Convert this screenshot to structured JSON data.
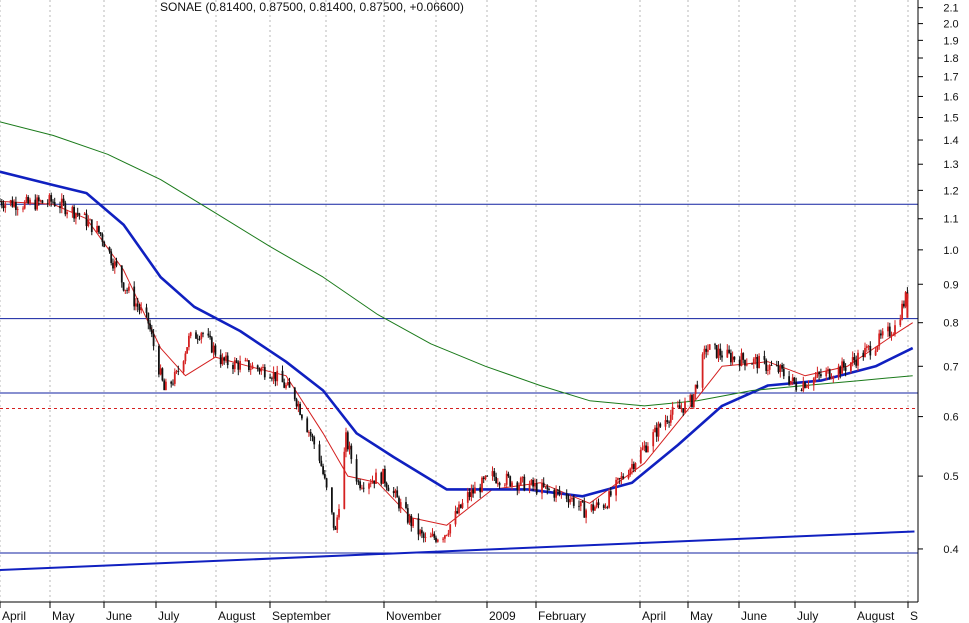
{
  "chart_data": {
    "type": "line",
    "title": "SONAE (0.81400, 0.87500, 0.81400, 0.87500, +0.06600)",
    "y_scale": "log",
    "ylim": [
      0.34,
      2.15
    ],
    "y_ticks": [
      2.1,
      2.0,
      1.9,
      1.8,
      1.7,
      1.6,
      1.5,
      1.4,
      1.3,
      1.2,
      1.1,
      1.0,
      0.9,
      0.8,
      0.7,
      0.6,
      0.5,
      0.4
    ],
    "x_labels": [
      "April",
      "May",
      "June",
      "July",
      "August",
      "September",
      "November",
      "2009",
      "February",
      "April",
      "May",
      "June",
      "July",
      "August",
      "S"
    ],
    "grid": "vertical dotted",
    "series": [
      {
        "type": "candlestick",
        "points": [
          {
            "date": "2008-04-01",
            "value": 1.16
          },
          {
            "date": "2008-04-15",
            "value": 1.15
          },
          {
            "date": "2008-05-01",
            "value": 1.16
          },
          {
            "date": "2008-05-15",
            "value": 1.12
          },
          {
            "date": "2008-05-28",
            "value": 1.05
          },
          {
            "date": "2008-06-10",
            "value": 0.9
          },
          {
            "date": "2008-06-24",
            "value": 0.8
          },
          {
            "date": "2008-07-03",
            "value": 0.65
          },
          {
            "date": "2008-07-10",
            "value": 0.68
          },
          {
            "date": "2008-07-17",
            "value": 0.76
          },
          {
            "date": "2008-07-24",
            "value": 0.78
          },
          {
            "date": "2008-08-05",
            "value": 0.71
          },
          {
            "date": "2008-08-20",
            "value": 0.7
          },
          {
            "date": "2008-09-01",
            "value": 0.69
          },
          {
            "date": "2008-09-15",
            "value": 0.64
          },
          {
            "date": "2008-09-29",
            "value": 0.53
          },
          {
            "date": "2008-10-08",
            "value": 0.42
          },
          {
            "date": "2008-10-14",
            "value": 0.56
          },
          {
            "date": "2008-10-21",
            "value": 0.49
          },
          {
            "date": "2008-11-04",
            "value": 0.5
          },
          {
            "date": "2008-11-18",
            "value": 0.44
          },
          {
            "date": "2008-11-28",
            "value": 0.41
          },
          {
            "date": "2008-12-09",
            "value": 0.42
          },
          {
            "date": "2008-12-22",
            "value": 0.47
          },
          {
            "date": "2009-01-05",
            "value": 0.5
          },
          {
            "date": "2009-01-20",
            "value": 0.49
          },
          {
            "date": "2009-02-03",
            "value": 0.48
          },
          {
            "date": "2009-02-17",
            "value": 0.47
          },
          {
            "date": "2009-02-26",
            "value": 0.45
          },
          {
            "date": "2009-03-10",
            "value": 0.46
          },
          {
            "date": "2009-03-20",
            "value": 0.5
          },
          {
            "date": "2009-04-02",
            "value": 0.55
          },
          {
            "date": "2009-04-14",
            "value": 0.6
          },
          {
            "date": "2009-04-28",
            "value": 0.63
          },
          {
            "date": "2009-05-06",
            "value": 0.74
          },
          {
            "date": "2009-05-20",
            "value": 0.72
          },
          {
            "date": "2009-06-03",
            "value": 0.71
          },
          {
            "date": "2009-06-17",
            "value": 0.69
          },
          {
            "date": "2009-06-26",
            "value": 0.66
          },
          {
            "date": "2009-07-10",
            "value": 0.68
          },
          {
            "date": "2009-07-24",
            "value": 0.7
          },
          {
            "date": "2009-08-07",
            "value": 0.74
          },
          {
            "date": "2009-08-21",
            "value": 0.79
          },
          {
            "date": "2009-08-28",
            "value": 0.875
          }
        ]
      },
      {
        "type": "line",
        "color": "#d42020",
        "points": [
          {
            "date": "2008-04-01",
            "value": 1.16
          },
          {
            "date": "2008-05-01",
            "value": 1.15
          },
          {
            "date": "2008-05-20",
            "value": 1.1
          },
          {
            "date": "2008-06-10",
            "value": 0.94
          },
          {
            "date": "2008-07-01",
            "value": 0.74
          },
          {
            "date": "2008-07-15",
            "value": 0.68
          },
          {
            "date": "2008-08-01",
            "value": 0.72
          },
          {
            "date": "2008-08-20",
            "value": 0.7
          },
          {
            "date": "2008-09-10",
            "value": 0.68
          },
          {
            "date": "2008-10-01",
            "value": 0.57
          },
          {
            "date": "2008-10-15",
            "value": 0.5
          },
          {
            "date": "2008-11-01",
            "value": 0.49
          },
          {
            "date": "2008-11-20",
            "value": 0.44
          },
          {
            "date": "2008-12-10",
            "value": 0.43
          },
          {
            "date": "2009-01-05",
            "value": 0.48
          },
          {
            "date": "2009-02-01",
            "value": 0.49
          },
          {
            "date": "2009-03-01",
            "value": 0.46
          },
          {
            "date": "2009-04-01",
            "value": 0.52
          },
          {
            "date": "2009-04-25",
            "value": 0.61
          },
          {
            "date": "2009-05-15",
            "value": 0.7
          },
          {
            "date": "2009-06-10",
            "value": 0.71
          },
          {
            "date": "2009-07-01",
            "value": 0.68
          },
          {
            "date": "2009-07-25",
            "value": 0.7
          },
          {
            "date": "2009-08-20",
            "value": 0.77
          },
          {
            "date": "2009-08-31",
            "value": 0.8
          }
        ]
      },
      {
        "type": "line",
        "color": "#1020c0",
        "points": [
          {
            "date": "2008-04-01",
            "value": 1.27
          },
          {
            "date": "2008-05-01",
            "value": 1.22
          },
          {
            "date": "2008-05-20",
            "value": 1.19
          },
          {
            "date": "2008-06-10",
            "value": 1.08
          },
          {
            "date": "2008-07-01",
            "value": 0.92
          },
          {
            "date": "2008-07-20",
            "value": 0.84
          },
          {
            "date": "2008-08-15",
            "value": 0.78
          },
          {
            "date": "2008-09-10",
            "value": 0.71
          },
          {
            "date": "2008-10-01",
            "value": 0.65
          },
          {
            "date": "2008-10-20",
            "value": 0.57
          },
          {
            "date": "2008-11-10",
            "value": 0.53
          },
          {
            "date": "2008-12-10",
            "value": 0.48
          },
          {
            "date": "2009-01-01",
            "value": 0.48
          },
          {
            "date": "2009-01-25",
            "value": 0.48
          },
          {
            "date": "2009-02-25",
            "value": 0.47
          },
          {
            "date": "2009-03-25",
            "value": 0.49
          },
          {
            "date": "2009-04-20",
            "value": 0.55
          },
          {
            "date": "2009-05-15",
            "value": 0.62
          },
          {
            "date": "2009-06-10",
            "value": 0.66
          },
          {
            "date": "2009-07-10",
            "value": 0.67
          },
          {
            "date": "2009-08-10",
            "value": 0.7
          },
          {
            "date": "2009-08-31",
            "value": 0.74
          }
        ]
      },
      {
        "type": "line",
        "color": "#1a7a1a",
        "points": [
          {
            "date": "2008-04-01",
            "value": 1.48
          },
          {
            "date": "2008-05-01",
            "value": 1.42
          },
          {
            "date": "2008-06-01",
            "value": 1.34
          },
          {
            "date": "2008-07-01",
            "value": 1.24
          },
          {
            "date": "2008-08-01",
            "value": 1.12
          },
          {
            "date": "2008-09-01",
            "value": 1.01
          },
          {
            "date": "2008-10-01",
            "value": 0.92
          },
          {
            "date": "2008-11-01",
            "value": 0.82
          },
          {
            "date": "2008-12-01",
            "value": 0.75
          },
          {
            "date": "2009-01-01",
            "value": 0.7
          },
          {
            "date": "2009-02-01",
            "value": 0.66
          },
          {
            "date": "2009-03-01",
            "value": 0.63
          },
          {
            "date": "2009-04-01",
            "value": 0.62
          },
          {
            "date": "2009-05-01",
            "value": 0.63
          },
          {
            "date": "2009-06-01",
            "value": 0.65
          },
          {
            "date": "2009-07-01",
            "value": 0.66
          },
          {
            "date": "2009-08-01",
            "value": 0.67
          },
          {
            "date": "2009-08-31",
            "value": 0.68
          }
        ]
      }
    ],
    "reference_lines": [
      {
        "value": 1.15,
        "color": "#1020a0",
        "style": "solid"
      },
      {
        "value": 0.81,
        "color": "#1020a0",
        "style": "solid"
      },
      {
        "value": 0.645,
        "color": "#1020a0",
        "style": "solid"
      },
      {
        "value": 0.615,
        "color": "#d42020",
        "style": "dashed"
      },
      {
        "value": 0.395,
        "color": "#1020a0",
        "style": "solid"
      }
    ],
    "trend_line": {
      "color": "#1020c0",
      "from": {
        "date": "2008-04-01",
        "value": 0.375
      },
      "to": {
        "date": "2009-09-01",
        "value": 0.422
      }
    }
  }
}
